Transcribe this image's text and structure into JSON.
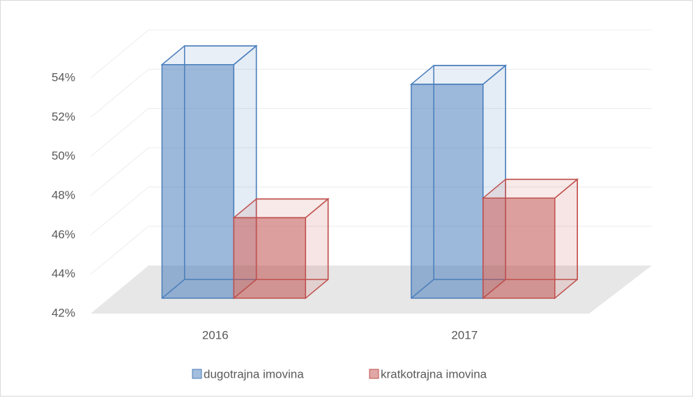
{
  "chart_data": {
    "type": "bar3d",
    "categories": [
      "2016",
      "2017"
    ],
    "series": [
      {
        "name": "dugotrajna imovina",
        "color": "#4a7ebb",
        "values": [
          53.9,
          52.9
        ]
      },
      {
        "name": "kratkotrajna imovina",
        "color": "#c0504d",
        "values": [
          46.1,
          47.1
        ]
      }
    ],
    "ylim": [
      42,
      54
    ],
    "yticks": [
      {
        "value": 42,
        "label": "42%"
      },
      {
        "value": 44,
        "label": "44%"
      },
      {
        "value": 46,
        "label": "46%"
      },
      {
        "value": 48,
        "label": "48%"
      },
      {
        "value": 50,
        "label": "50%"
      },
      {
        "value": 52,
        "label": "52%"
      },
      {
        "value": 54,
        "label": "54%"
      }
    ],
    "grid": true,
    "legend": "bottom"
  }
}
